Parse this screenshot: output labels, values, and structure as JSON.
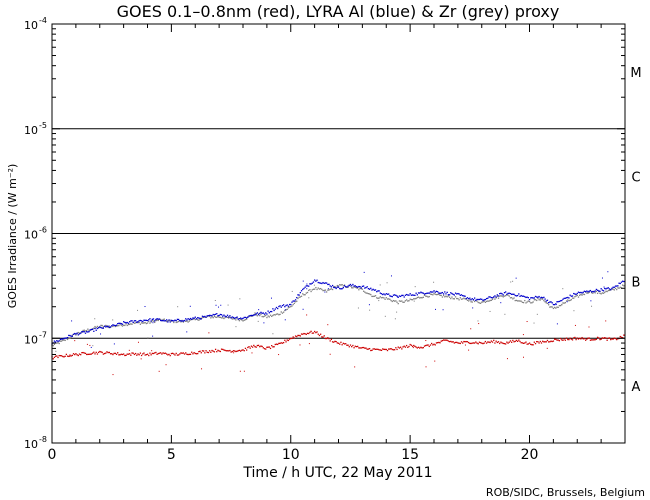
{
  "chart_data": {
    "type": "scatter",
    "title": "GOES 0.1–0.8nm (red), LYRA Al (blue) & Zr (grey) proxy",
    "xlabel": "Time / h UTC, 22 May 2011",
    "ylabel": "GOES Irradiance / (W m⁻²)",
    "credit": "ROB/SIDC, Brussels, Belgium",
    "xlim": [
      0,
      24
    ],
    "ylim_log10": [
      -8,
      -4
    ],
    "yscale": "log",
    "x_ticks": [
      0,
      5,
      10,
      15,
      20
    ],
    "x_tick_labels": [
      "0",
      "5",
      "10",
      "15",
      "20"
    ],
    "y_ticks_log10": [
      -8,
      -7,
      -6,
      -5,
      -4
    ],
    "y_tick_base": "10",
    "y_tick_exponents": [
      "-8",
      "-7",
      "-6",
      "-5",
      "-4"
    ],
    "flare_levels": [
      {
        "value": 1e-07,
        "label": "A",
        "label_pos": 3.5e-08
      },
      {
        "value": 1e-06,
        "label": "B",
        "label_pos": 3.5e-07
      },
      {
        "value": 1e-05,
        "label": "C",
        "label_pos": 3.5e-06
      },
      {
        "value": 0.0001,
        "label": "M",
        "label_pos": 3.5e-05
      }
    ],
    "series": [
      {
        "color": "#808080",
        "x": [
          0,
          0.5,
          1,
          1.5,
          2,
          2.5,
          3,
          3.5,
          4,
          4.5,
          5,
          5.5,
          6,
          6.5,
          7,
          7.5,
          8,
          8.5,
          9,
          9.5,
          10,
          10.5,
          11,
          11.5,
          12,
          12.5,
          13,
          13.5,
          14,
          14.5,
          15,
          15.5,
          16,
          16.5,
          17,
          17.5,
          18,
          18.5,
          19,
          19.5,
          20,
          20.5,
          21,
          21.5,
          22,
          22.5,
          23,
          23.5,
          24
        ],
        "values": [
          8.5e-08,
          9.5e-08,
          1.1e-07,
          1.2e-07,
          1.3e-07,
          1.3e-07,
          1.35e-07,
          1.4e-07,
          1.4e-07,
          1.5e-07,
          1.45e-07,
          1.45e-07,
          1.5e-07,
          1.6e-07,
          1.6e-07,
          1.55e-07,
          1.5e-07,
          1.7e-07,
          1.6e-07,
          1.7e-07,
          2e-07,
          2.6e-07,
          3e-07,
          2.8e-07,
          3.2e-07,
          3.1e-07,
          2.9e-07,
          2.5e-07,
          2.4e-07,
          2.2e-07,
          2.3e-07,
          2.5e-07,
          2.6e-07,
          2.5e-07,
          2.4e-07,
          2.3e-07,
          2.2e-07,
          2.4e-07,
          2.6e-07,
          2.3e-07,
          2.2e-07,
          2.4e-07,
          1.9e-07,
          2.2e-07,
          2.5e-07,
          2.8e-07,
          2.7e-07,
          2.9e-07,
          3.2e-07
        ]
      },
      {
        "color": "#0000cc",
        "x": [
          0,
          0.5,
          1,
          1.5,
          2,
          2.5,
          3,
          3.5,
          4,
          4.5,
          5,
          5.5,
          6,
          6.5,
          7,
          7.5,
          8,
          8.5,
          9,
          9.5,
          10,
          10.5,
          11,
          11.5,
          12,
          12.5,
          13,
          13.5,
          14,
          14.5,
          15,
          15.5,
          16,
          16.5,
          17,
          17.5,
          18,
          18.5,
          19,
          19.5,
          20,
          20.5,
          21,
          21.5,
          22,
          22.5,
          23,
          23.5,
          24
        ],
        "values": [
          9e-08,
          1e-07,
          1.1e-07,
          1.15e-07,
          1.25e-07,
          1.3e-07,
          1.4e-07,
          1.45e-07,
          1.5e-07,
          1.5e-07,
          1.45e-07,
          1.5e-07,
          1.55e-07,
          1.6e-07,
          1.7e-07,
          1.6e-07,
          1.55e-07,
          1.7e-07,
          1.75e-07,
          2e-07,
          2.1e-07,
          2.9e-07,
          3.6e-07,
          3.3e-07,
          3e-07,
          3.2e-07,
          3.1e-07,
          2.9e-07,
          2.6e-07,
          2.5e-07,
          2.6e-07,
          2.7e-07,
          2.8e-07,
          2.7e-07,
          2.6e-07,
          2.4e-07,
          2.3e-07,
          2.5e-07,
          2.7e-07,
          2.6e-07,
          2.4e-07,
          2.5e-07,
          2.1e-07,
          2.4e-07,
          2.7e-07,
          2.8e-07,
          2.9e-07,
          3e-07,
          3.6e-07
        ]
      },
      {
        "color": "#cc0000",
        "x": [
          0,
          0.5,
          1,
          1.5,
          2,
          2.5,
          3,
          3.5,
          4,
          4.5,
          5,
          5.5,
          6,
          6.5,
          7,
          7.5,
          8,
          8.5,
          9,
          9.5,
          10,
          10.5,
          11,
          11.5,
          12,
          12.5,
          13,
          13.5,
          14,
          14.5,
          15,
          15.5,
          16,
          16.5,
          17,
          17.5,
          18,
          18.5,
          19,
          19.5,
          20,
          20.5,
          21,
          21.5,
          22,
          22.5,
          23,
          23.5,
          24
        ],
        "values": [
          6.5e-08,
          6.8e-08,
          7e-08,
          7.2e-08,
          7.3e-08,
          7.2e-08,
          7e-08,
          7.1e-08,
          7e-08,
          7.2e-08,
          7e-08,
          7.1e-08,
          7.3e-08,
          7.5e-08,
          7.7e-08,
          7.6e-08,
          7.7e-08,
          8.5e-08,
          8e-08,
          8.7e-08,
          1e-07,
          1.1e-07,
          1.15e-07,
          1e-07,
          9e-08,
          8.5e-08,
          8e-08,
          7.8e-08,
          7.7e-08,
          8e-08,
          8.5e-08,
          8.2e-08,
          8.8e-08,
          9.5e-08,
          9e-08,
          9.2e-08,
          9e-08,
          9.3e-08,
          9e-08,
          9.5e-08,
          8.8e-08,
          9.2e-08,
          9.6e-08,
          9.8e-08,
          1e-07,
          9.8e-08,
          1e-07,
          9.7e-08,
          1.05e-07
        ]
      }
    ]
  }
}
